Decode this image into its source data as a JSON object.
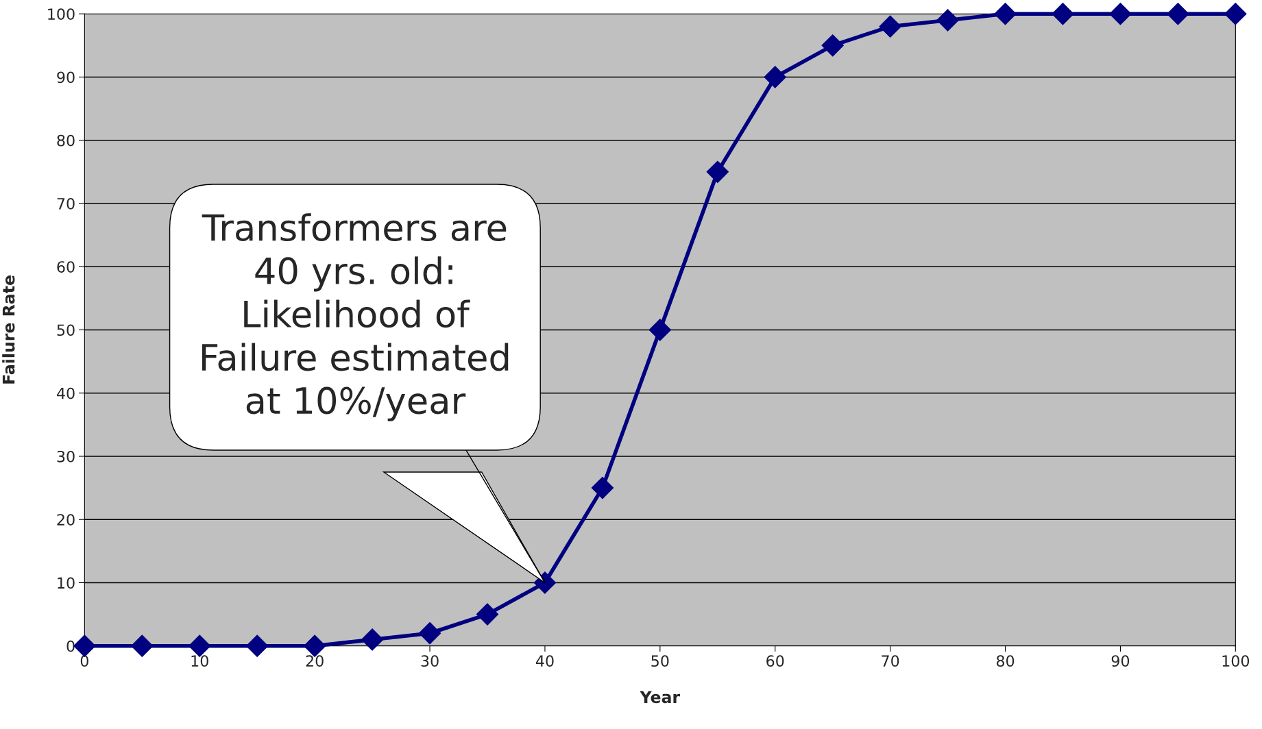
{
  "chart_data": {
    "type": "line",
    "xlabel": "Year",
    "ylabel": "Failure Rate",
    "x": [
      0,
      5,
      10,
      15,
      20,
      25,
      30,
      35,
      40,
      45,
      50,
      55,
      60,
      65,
      70,
      75,
      80,
      85,
      90,
      95,
      100
    ],
    "series": [
      {
        "color": "#000080",
        "values": [
          0,
          0,
          0,
          0,
          0,
          1,
          2,
          5,
          10,
          25,
          50,
          75,
          90,
          95,
          98,
          99,
          100,
          100,
          100,
          100,
          100
        ]
      }
    ],
    "xlim": [
      0,
      100
    ],
    "xticks": [
      0,
      10,
      20,
      30,
      40,
      50,
      60,
      70,
      80,
      90,
      100
    ],
    "ylim": [
      0,
      100
    ],
    "yticks": [
      0,
      10,
      20,
      30,
      40,
      50,
      60,
      70,
      80,
      90,
      100
    ],
    "grid": "y",
    "marker": "diamond",
    "line_style": "solid",
    "legend": false,
    "annotations": [
      {
        "text": "Transformers are\n40 yrs. old:\nLikelihood of\nFailure estimated\nat 10%/year",
        "x": 40,
        "y": 10
      }
    ]
  }
}
